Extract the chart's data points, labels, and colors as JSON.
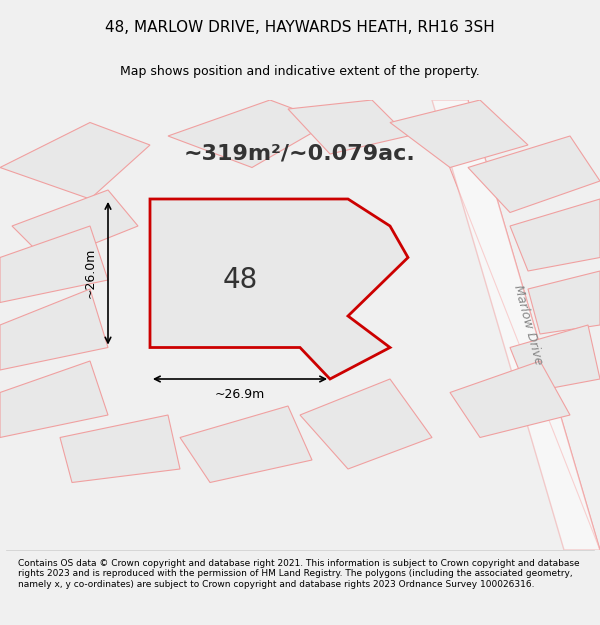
{
  "title": "48, MARLOW DRIVE, HAYWARDS HEATH, RH16 3SH",
  "subtitle": "Map shows position and indicative extent of the property.",
  "area_text": "~319m²/~0.079ac.",
  "label_48": "48",
  "dim_left": "~26.0m",
  "dim_bottom": "~26.9m",
  "road_label": "Marlow Drive",
  "footer": "Contains OS data © Crown copyright and database right 2021. This information is subject to Crown copyright and database rights 2023 and is reproduced with the permission of HM Land Registry. The polygons (including the associated geometry, namely x, y co-ordinates) are subject to Crown copyright and database rights 2023 Ordnance Survey 100026316.",
  "bg_color": "#f0f0f0",
  "map_bg": "#f5f5f5",
  "plot_fill": "#e8e8e8",
  "plot_edge": "#cc0000",
  "neighbor_fill": "#e8e8e8",
  "neighbor_edge": "#f0a0a0",
  "road_color": "#f0a0a0"
}
